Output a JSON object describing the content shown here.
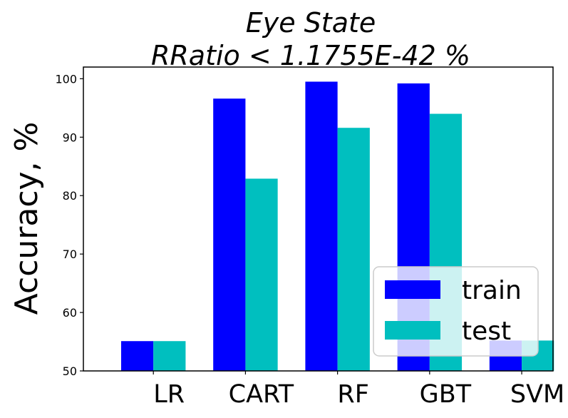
{
  "chart_data": {
    "type": "bar",
    "title_line1": "Eye State",
    "title_line2": "RRatio < 1.1755E-42 %",
    "xlabel": "",
    "ylabel": "Accuracy, %",
    "categories": [
      "LR",
      "CART",
      "RF",
      "GBT",
      "SVM"
    ],
    "series": [
      {
        "name": "train",
        "color": "#0000ff",
        "values": [
          55.1,
          96.6,
          99.5,
          99.2,
          55.2
        ]
      },
      {
        "name": "test",
        "color": "#00bfbf",
        "values": [
          55.1,
          82.9,
          91.6,
          94.0,
          55.2
        ]
      }
    ],
    "yticks": [
      "50",
      "60",
      "70",
      "80",
      "90",
      "100"
    ],
    "ylim": [
      50,
      102
    ],
    "grid": false,
    "legend_position": "lower-right"
  }
}
